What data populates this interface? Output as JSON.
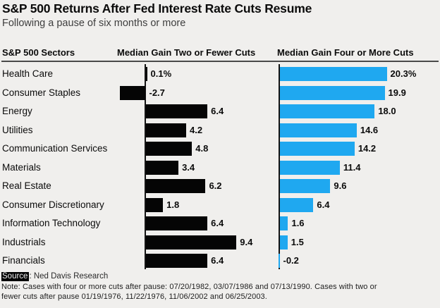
{
  "title": "S&P 500 Returns After Fed Interest Rate Cuts Resume",
  "subtitle": "Following a pause of six months or more",
  "columns": {
    "sectors_header": "S&P 500 Sectors",
    "left_header": "Median Gain Two or Fewer Cuts",
    "right_header": "Median Gain Four or More Cuts"
  },
  "footer": {
    "source_label": "Source",
    "source_text": ": Ned Davis Research",
    "note_lines": [
      "Note: Cases with four or more cuts after pause: 07/20/1982, 03/07/1986 and 07/13/1990. Cases with two or",
      "fewer cuts after pause 01/19/1976, 11/22/1976, 11/06/2002 and 06/25/2003."
    ]
  },
  "colors": {
    "background": "#f0efed",
    "black_bar": "#050505",
    "blue_bar": "#1fa8f0"
  },
  "chart_data": {
    "type": "bar",
    "orientation": "horizontal",
    "unit": "percent",
    "categories": [
      "Health Care",
      "Consumer Staples",
      "Energy",
      "Utilities",
      "Communication Services",
      "Materials",
      "Real Estate",
      "Consumer Discretionary",
      "Information Technology",
      "Industrials",
      "Financials"
    ],
    "series": [
      {
        "name": "Median Gain Two or Fewer Cuts",
        "color": "#050505",
        "values": [
          0.1,
          -2.7,
          6.4,
          4.2,
          4.8,
          3.4,
          6.2,
          1.8,
          6.4,
          9.4,
          6.4
        ],
        "labels": [
          "0.1%",
          "-2.7",
          "6.4",
          "4.2",
          "4.8",
          "3.4",
          "6.2",
          "1.8",
          "6.4",
          "9.4",
          "6.4"
        ]
      },
      {
        "name": "Median Gain Four or More Cuts",
        "color": "#1fa8f0",
        "values": [
          20.3,
          19.9,
          18.0,
          14.6,
          14.2,
          11.4,
          9.6,
          6.4,
          1.6,
          1.5,
          -0.2
        ],
        "labels": [
          "20.3%",
          "19.9",
          "18.0",
          "14.6",
          "14.2",
          "11.4",
          "9.6",
          "6.4",
          "1.6",
          "1.5",
          "-0.2"
        ]
      }
    ],
    "legend_position": "none",
    "grid": false
  }
}
